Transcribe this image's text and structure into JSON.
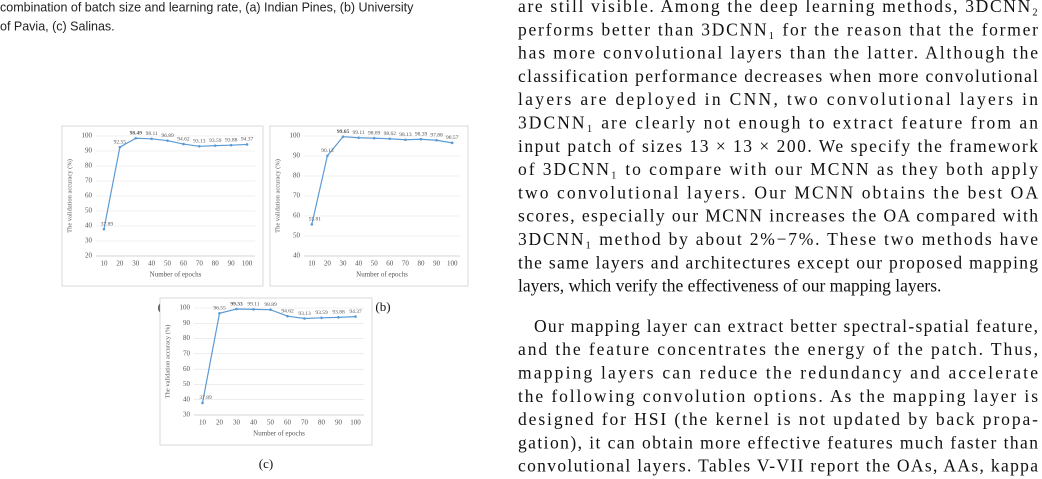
{
  "caption_lines": [
    "combination of batch size and learning rate, (a) Indian Pines, (b) University",
    "of Pavia, (c) Salinas."
  ],
  "chart_data": [
    {
      "type": "line",
      "caption": "(a)",
      "y_label": "The validation accuracy (%)",
      "x_label": "Number of epochs",
      "categories": [
        "10",
        "20",
        "30",
        "40",
        "50",
        "60",
        "70",
        "80",
        "90",
        "100"
      ],
      "values": [
        37.89,
        92.55,
        98.49,
        98.11,
        96.89,
        94.62,
        93.13,
        93.59,
        93.88,
        94.37
      ],
      "color": "#5b9bd5",
      "ylim": [
        20,
        100
      ],
      "yticks": [
        20,
        30,
        40,
        50,
        60,
        70,
        80,
        90,
        100
      ],
      "grid": true
    },
    {
      "type": "line",
      "caption": "(b)",
      "y_label": "The validation accuracy (%)",
      "x_label": "Number of epochs",
      "categories": [
        "10",
        "20",
        "30",
        "40",
        "50",
        "60",
        "70",
        "80",
        "90",
        "100"
      ],
      "values": [
        55.81,
        90.13,
        99.65,
        99.11,
        98.89,
        98.62,
        98.13,
        98.39,
        97.88,
        96.57
      ],
      "color": "#5b9bd5",
      "ylim": [
        40,
        100
      ],
      "yticks": [
        40,
        50,
        60,
        70,
        80,
        90,
        100
      ],
      "grid": true
    },
    {
      "type": "line",
      "caption": "(c)",
      "y_label": "The validation accuracy (%)",
      "x_label": "Number of epochs",
      "categories": [
        "10",
        "20",
        "30",
        "40",
        "50",
        "60",
        "70",
        "80",
        "90",
        "100"
      ],
      "values": [
        37.89,
        96.55,
        99.33,
        99.11,
        98.89,
        94.62,
        93.13,
        93.59,
        93.88,
        94.37
      ],
      "color": "#5b9bd5",
      "ylim": [
        30,
        100
      ],
      "yticks": [
        30,
        40,
        50,
        60,
        70,
        80,
        90,
        100
      ],
      "grid": true
    }
  ],
  "body": {
    "paragraphs": [
      [
        "are still visible. Among the deep learning methods, 3DCNN₂",
        "performs better than 3DCNN₁ for the reason that the former",
        "has more convolutional layers than the latter. Although the",
        "classification performance decreases when more convolutional",
        "layers are deployed in CNN, two convolutional layers in",
        "3DCNN₁ are clearly not enough to extract feature from an",
        "input patch of sizes 13 × 13 × 200. We specify the framework",
        "of 3DCNN₁ to compare with our MCNN as they both apply",
        "two convolutional layers. Our MCNN obtains the best OA",
        "scores, especially our MCNN increases the OA compared with",
        "3DCNN₁ method by about 2%−7%. These two methods have",
        "the same layers and architectures except our proposed mapping",
        "layers, which verify the effectiveness of our mapping layers."
      ],
      [
        "Our mapping layer can extract better spectral-spatial feature,",
        "and the feature concentrates the energy of the patch. Thus,",
        "mapping layers can reduce the redundancy and accelerate",
        "the following convolution options. As the mapping layer is",
        "designed for HSI (the kernel is not updated by back propa-",
        "gation), it can obtain more effective features much faster than",
        "convolutional layers. Tables V-VII report the OAs, AAs, kappa"
      ]
    ]
  }
}
